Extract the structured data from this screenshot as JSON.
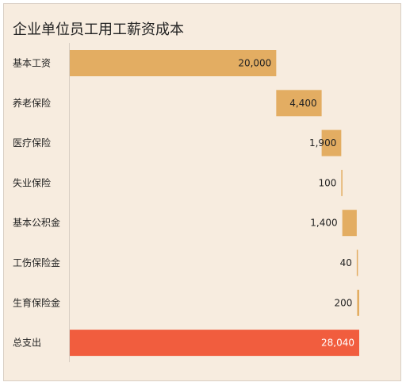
{
  "chart_data": {
    "type": "bar",
    "subtype": "waterfall",
    "orientation": "horizontal",
    "title": "企业单位员工用工薪资成本",
    "categories": [
      "基本工资",
      "养老保险",
      "医疗保险",
      "失业保险",
      "基本公积金",
      "工伤保险金",
      "生育保险金",
      "总支出"
    ],
    "values": [
      20000,
      4400,
      1900,
      100,
      1400,
      40,
      200,
      28040
    ],
    "value_labels": [
      "20,000",
      "4,400",
      "1,900",
      "100",
      "1,400",
      "40",
      "200",
      "28,040"
    ],
    "total_index": 7,
    "xlim": [
      0,
      28040
    ],
    "legend": "none",
    "grid": false,
    "colors": {
      "increment": "#e3ad62",
      "total": "#f15d3e",
      "axis": "#d9cfc4",
      "background": "#f7ecdf"
    }
  }
}
